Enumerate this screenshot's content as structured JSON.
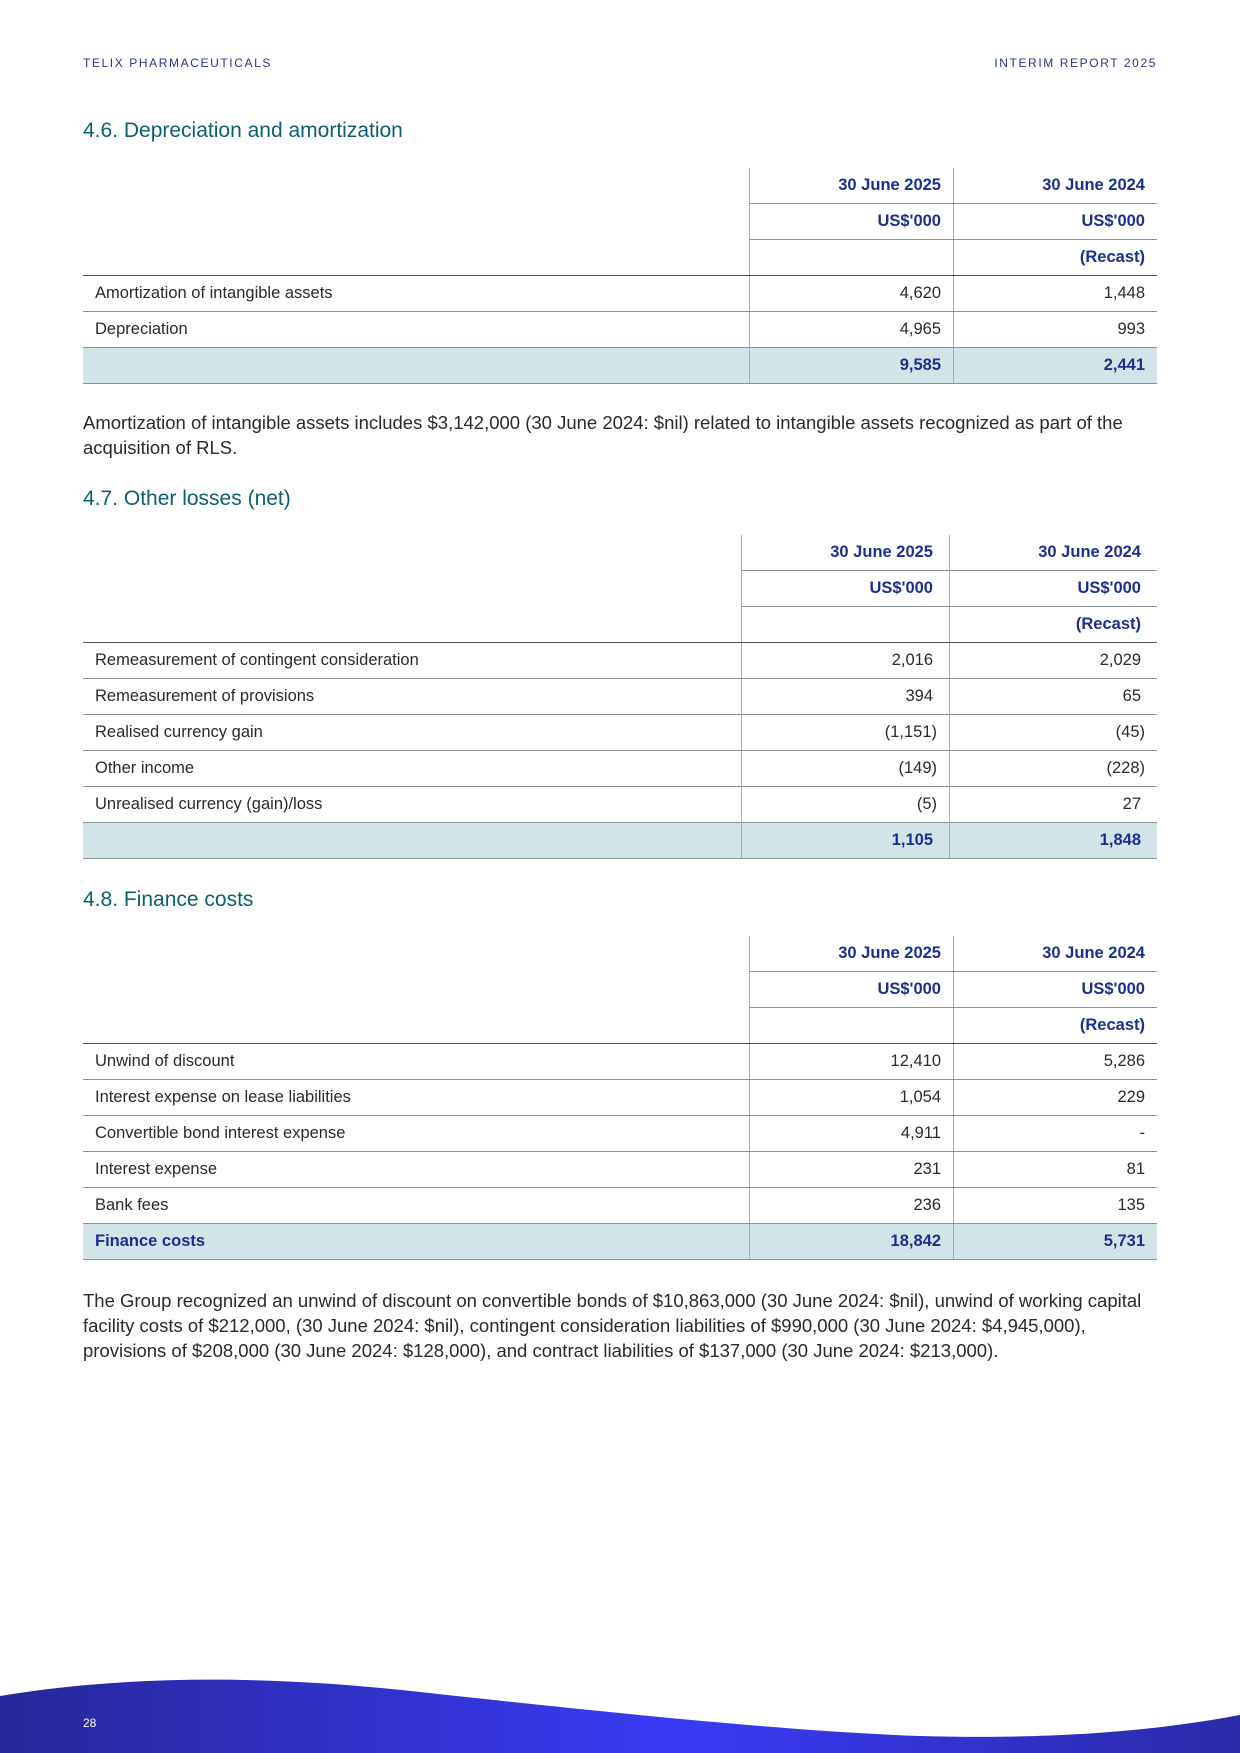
{
  "header": {
    "company": "TELIX PHARMACEUTICALS",
    "report": "INTERIM REPORT 2025"
  },
  "colors": {
    "heading": "#0b5f73",
    "table_text": "#1b2f8e",
    "total_bg": "#d3e4e8",
    "footer": "#3a3af5"
  },
  "sections": [
    {
      "title": "4.6. Depreciation and amortization",
      "columns": [
        [
          "30 June 2025",
          "US$'000",
          ""
        ],
        [
          "30 June 2024",
          "US$'000",
          "(Recast)"
        ]
      ],
      "rows": [
        [
          "Amortization of intangible assets",
          "4,620",
          "1,448"
        ],
        [
          "Depreciation",
          "4,965",
          "993"
        ]
      ],
      "total": [
        "",
        "9,585",
        "2,441"
      ],
      "note": "Amortization of intangible assets includes $3,142,000 (30 June 2024: $nil) related to intangible assets recognized as part of the acquisition of RLS."
    },
    {
      "title": "4.7. Other losses (net)",
      "columns": [
        [
          "30 June 2025",
          "US$'000",
          ""
        ],
        [
          "30 June 2024",
          "US$'000",
          "(Recast)"
        ]
      ],
      "rows": [
        [
          "Remeasurement of contingent consideration",
          "2,016",
          "2,029"
        ],
        [
          "Remeasurement of provisions",
          "394",
          "65"
        ],
        [
          "Realised currency gain",
          "(1,151)",
          "(45)"
        ],
        [
          "Other income",
          "(149)",
          "(228)"
        ],
        [
          "Unrealised currency (gain)/loss",
          "(5)",
          "27"
        ]
      ],
      "total": [
        "",
        "1,105",
        "1,848"
      ]
    },
    {
      "title": "4.8. Finance costs",
      "columns": [
        [
          "30 June 2025",
          "US$'000",
          ""
        ],
        [
          "30 June 2024",
          "US$'000",
          "(Recast)"
        ]
      ],
      "rows": [
        [
          "Unwind of discount",
          "12,410",
          "5,286"
        ],
        [
          "Interest expense on lease liabilities",
          "1,054",
          "229"
        ],
        [
          "Convertible bond interest expense",
          "4,911",
          "-"
        ],
        [
          "Interest expense",
          "231",
          "81"
        ],
        [
          "Bank fees",
          "236",
          "135"
        ]
      ],
      "total": [
        "Finance costs",
        "18,842",
        "5,731"
      ],
      "note": "The Group recognized an unwind of discount on convertible bonds of $10,863,000 (30 June 2024: $nil), unwind of working capital facility costs of $212,000, (30 June 2024: $nil), contingent consideration liabilities of $990,000 (30 June 2024: $4,945,000), provisions of $208,000 (30 June 2024: $128,000), and contract liabilities of $137,000 (30 June 2024: $213,000)."
    }
  ],
  "footer": {
    "page_number": "28"
  }
}
